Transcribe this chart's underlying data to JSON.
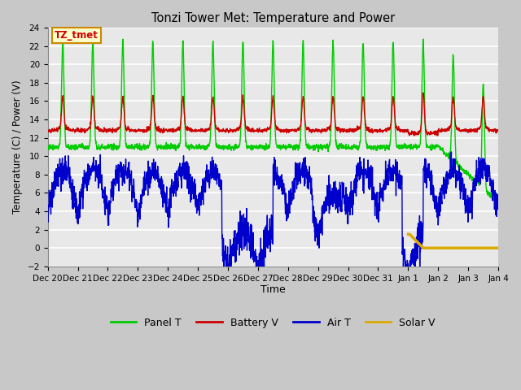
{
  "title": "Tonzi Tower Met: Temperature and Power",
  "xlabel": "Time",
  "ylabel": "Temperature (C) / Power (V)",
  "ylim": [
    -2,
    24
  ],
  "yticks": [
    -2,
    0,
    2,
    4,
    6,
    8,
    10,
    12,
    14,
    16,
    18,
    20,
    22,
    24
  ],
  "fig_bg_color": "#c8c8c8",
  "plot_bg_color": "#e8e8e8",
  "grid_color": "#ffffff",
  "panel_color": "#00cc00",
  "battery_color": "#cc0000",
  "air_color": "#0000cc",
  "solar_color": "#ddaa00",
  "annotation_text": "TZ_tmet",
  "annotation_fg": "#cc0000",
  "annotation_bg": "#ffffcc",
  "annotation_border": "#cc8800"
}
